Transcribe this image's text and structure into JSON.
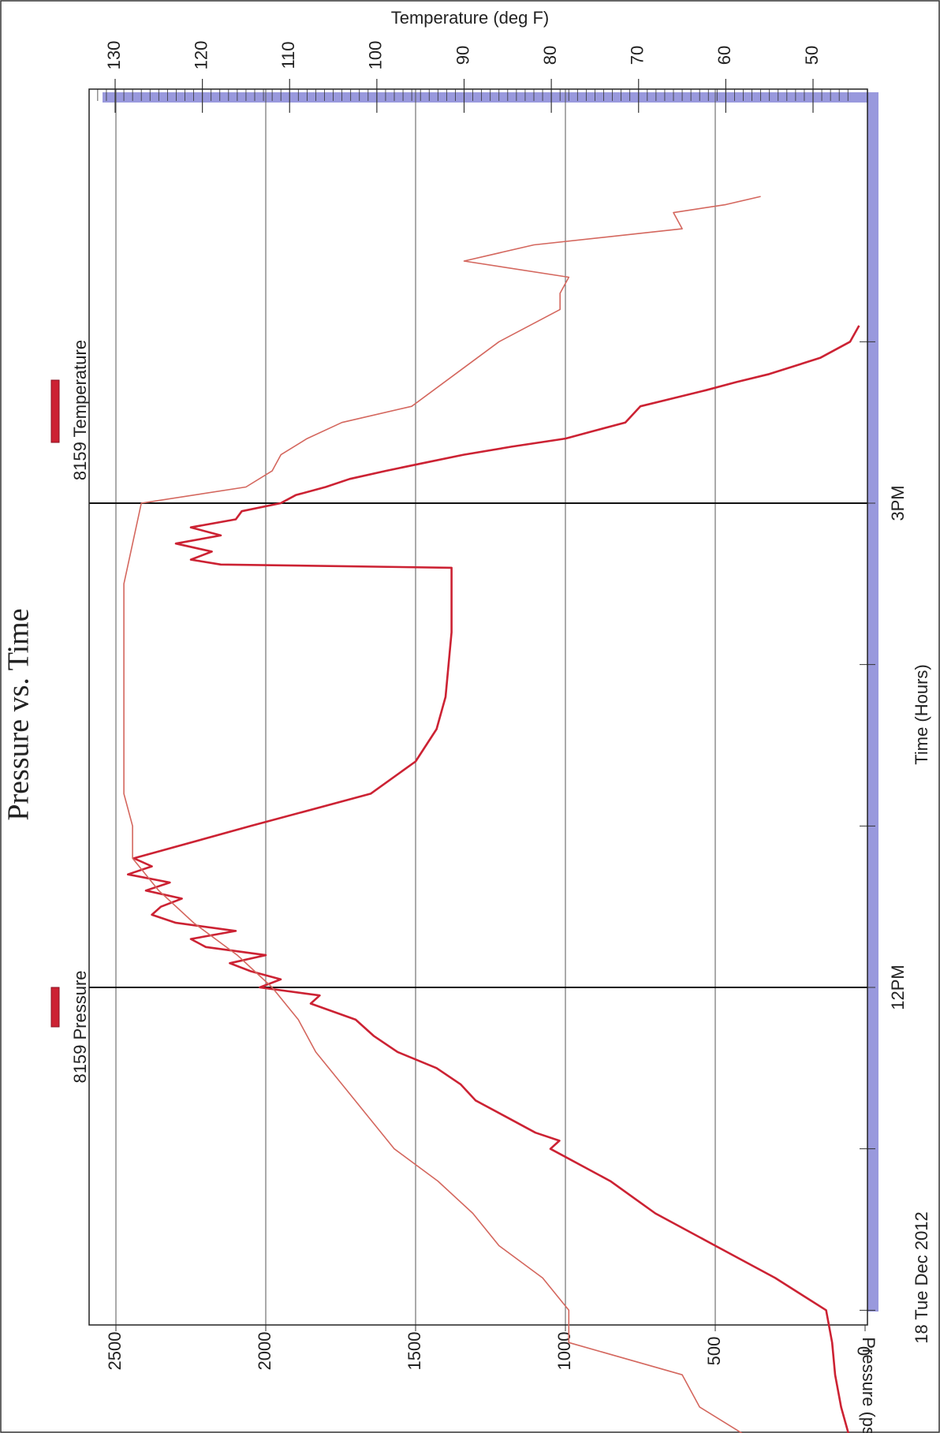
{
  "chart_data": {
    "type": "line",
    "orientation": "rotated-90-ccw",
    "title": "Pressure vs. Time",
    "xlabel": "Time (Hours)",
    "ylabel": "Pressure (psia)",
    "y2label": "Temperature (deg F)",
    "date_label": "18 Tue Dec 2012",
    "x_range_hours": [
      8.6,
      16.2
    ],
    "x_ticks": [
      {
        "hour": 12,
        "label": "12PM"
      },
      {
        "hour": 15,
        "label": "3PM"
      }
    ],
    "x_minor_ticks_hours": [
      9,
      10,
      11,
      13,
      14,
      16
    ],
    "ylim": [
      0,
      2600
    ],
    "y_ticks": [
      0,
      500,
      1000,
      1500,
      2000,
      2500
    ],
    "y2lim": [
      44,
      133
    ],
    "y2_ticks": [
      50,
      60,
      70,
      80,
      90,
      100,
      110,
      120,
      130
    ],
    "grid": true,
    "legend": [
      {
        "name": "8159 Pressure",
        "color": "#cc2233"
      },
      {
        "name": "8159 Temperature",
        "color": "#cc2233"
      }
    ],
    "series": [
      {
        "name": "8159 Pressure",
        "axis": "left",
        "color": "#cc2233",
        "x": [
          8.8,
          9.0,
          9.2,
          9.4,
          9.6,
          9.8,
          10.0,
          10.2,
          10.4,
          10.6,
          10.8,
          11.0,
          11.05,
          11.1,
          11.2,
          11.3,
          11.4,
          11.5,
          11.6,
          11.7,
          11.8,
          11.9,
          11.95,
          12.0,
          12.05,
          12.1,
          12.15,
          12.2,
          12.25,
          12.3,
          12.35,
          12.4,
          12.45,
          12.5,
          12.55,
          12.6,
          12.65,
          12.7,
          12.75,
          12.8,
          13.0,
          13.2,
          13.4,
          13.6,
          13.8,
          14.0,
          14.2,
          14.4,
          14.6,
          14.62,
          14.65,
          14.7,
          14.75,
          14.8,
          14.85,
          14.9,
          14.95,
          15.0,
          15.05,
          15.1,
          15.15,
          15.2,
          15.25,
          15.3,
          15.35,
          15.4,
          15.45,
          15.5,
          15.6,
          15.7,
          15.75,
          15.8,
          15.9,
          16.0,
          16.1
        ],
        "values": [
          20,
          30,
          50,
          80,
          100,
          110,
          130,
          300,
          500,
          700,
          850,
          1050,
          1020,
          1100,
          1200,
          1300,
          1350,
          1430,
          1560,
          1640,
          1700,
          1850,
          1820,
          2020,
          1950,
          2050,
          2120,
          2000,
          2200,
          2250,
          2100,
          2300,
          2380,
          2350,
          2280,
          2400,
          2320,
          2460,
          2380,
          2440,
          2050,
          1650,
          1500,
          1430,
          1400,
          1390,
          1380,
          1380,
          1380,
          2150,
          2250,
          2180,
          2300,
          2150,
          2250,
          2100,
          2080,
          1950,
          1900,
          1800,
          1720,
          1600,
          1470,
          1340,
          1180,
          1000,
          900,
          800,
          750,
          530,
          430,
          320,
          150,
          50,
          20
        ]
      },
      {
        "name": "8159 Temperature",
        "axis": "right",
        "color": "#d4675e",
        "x": [
          8.8,
          8.9,
          9.0,
          9.2,
          9.4,
          9.6,
          9.8,
          10.0,
          10.2,
          10.4,
          10.6,
          10.8,
          11.0,
          11.2,
          11.4,
          11.6,
          11.8,
          12.0,
          12.2,
          12.4,
          12.6,
          12.8,
          13.0,
          13.2,
          13.5,
          14.0,
          14.5,
          15.0,
          15.1,
          15.2,
          15.3,
          15.4,
          15.5,
          15.6,
          15.8,
          16.0,
          16.2,
          16.3,
          16.4,
          16.5,
          16.6,
          16.7,
          16.8,
          16.85,
          16.9
        ],
        "values": [
          48,
          52,
          54,
          57,
          63,
          65,
          78,
          78,
          81,
          86,
          89,
          93,
          98,
          101,
          104,
          107,
          109,
          112,
          116,
          121,
          125,
          128,
          128,
          129,
          129,
          129,
          129,
          127,
          115,
          112,
          111,
          108,
          104,
          96,
          91,
          86,
          79,
          79,
          78,
          90,
          82,
          65,
          66,
          60,
          56
        ]
      }
    ]
  }
}
